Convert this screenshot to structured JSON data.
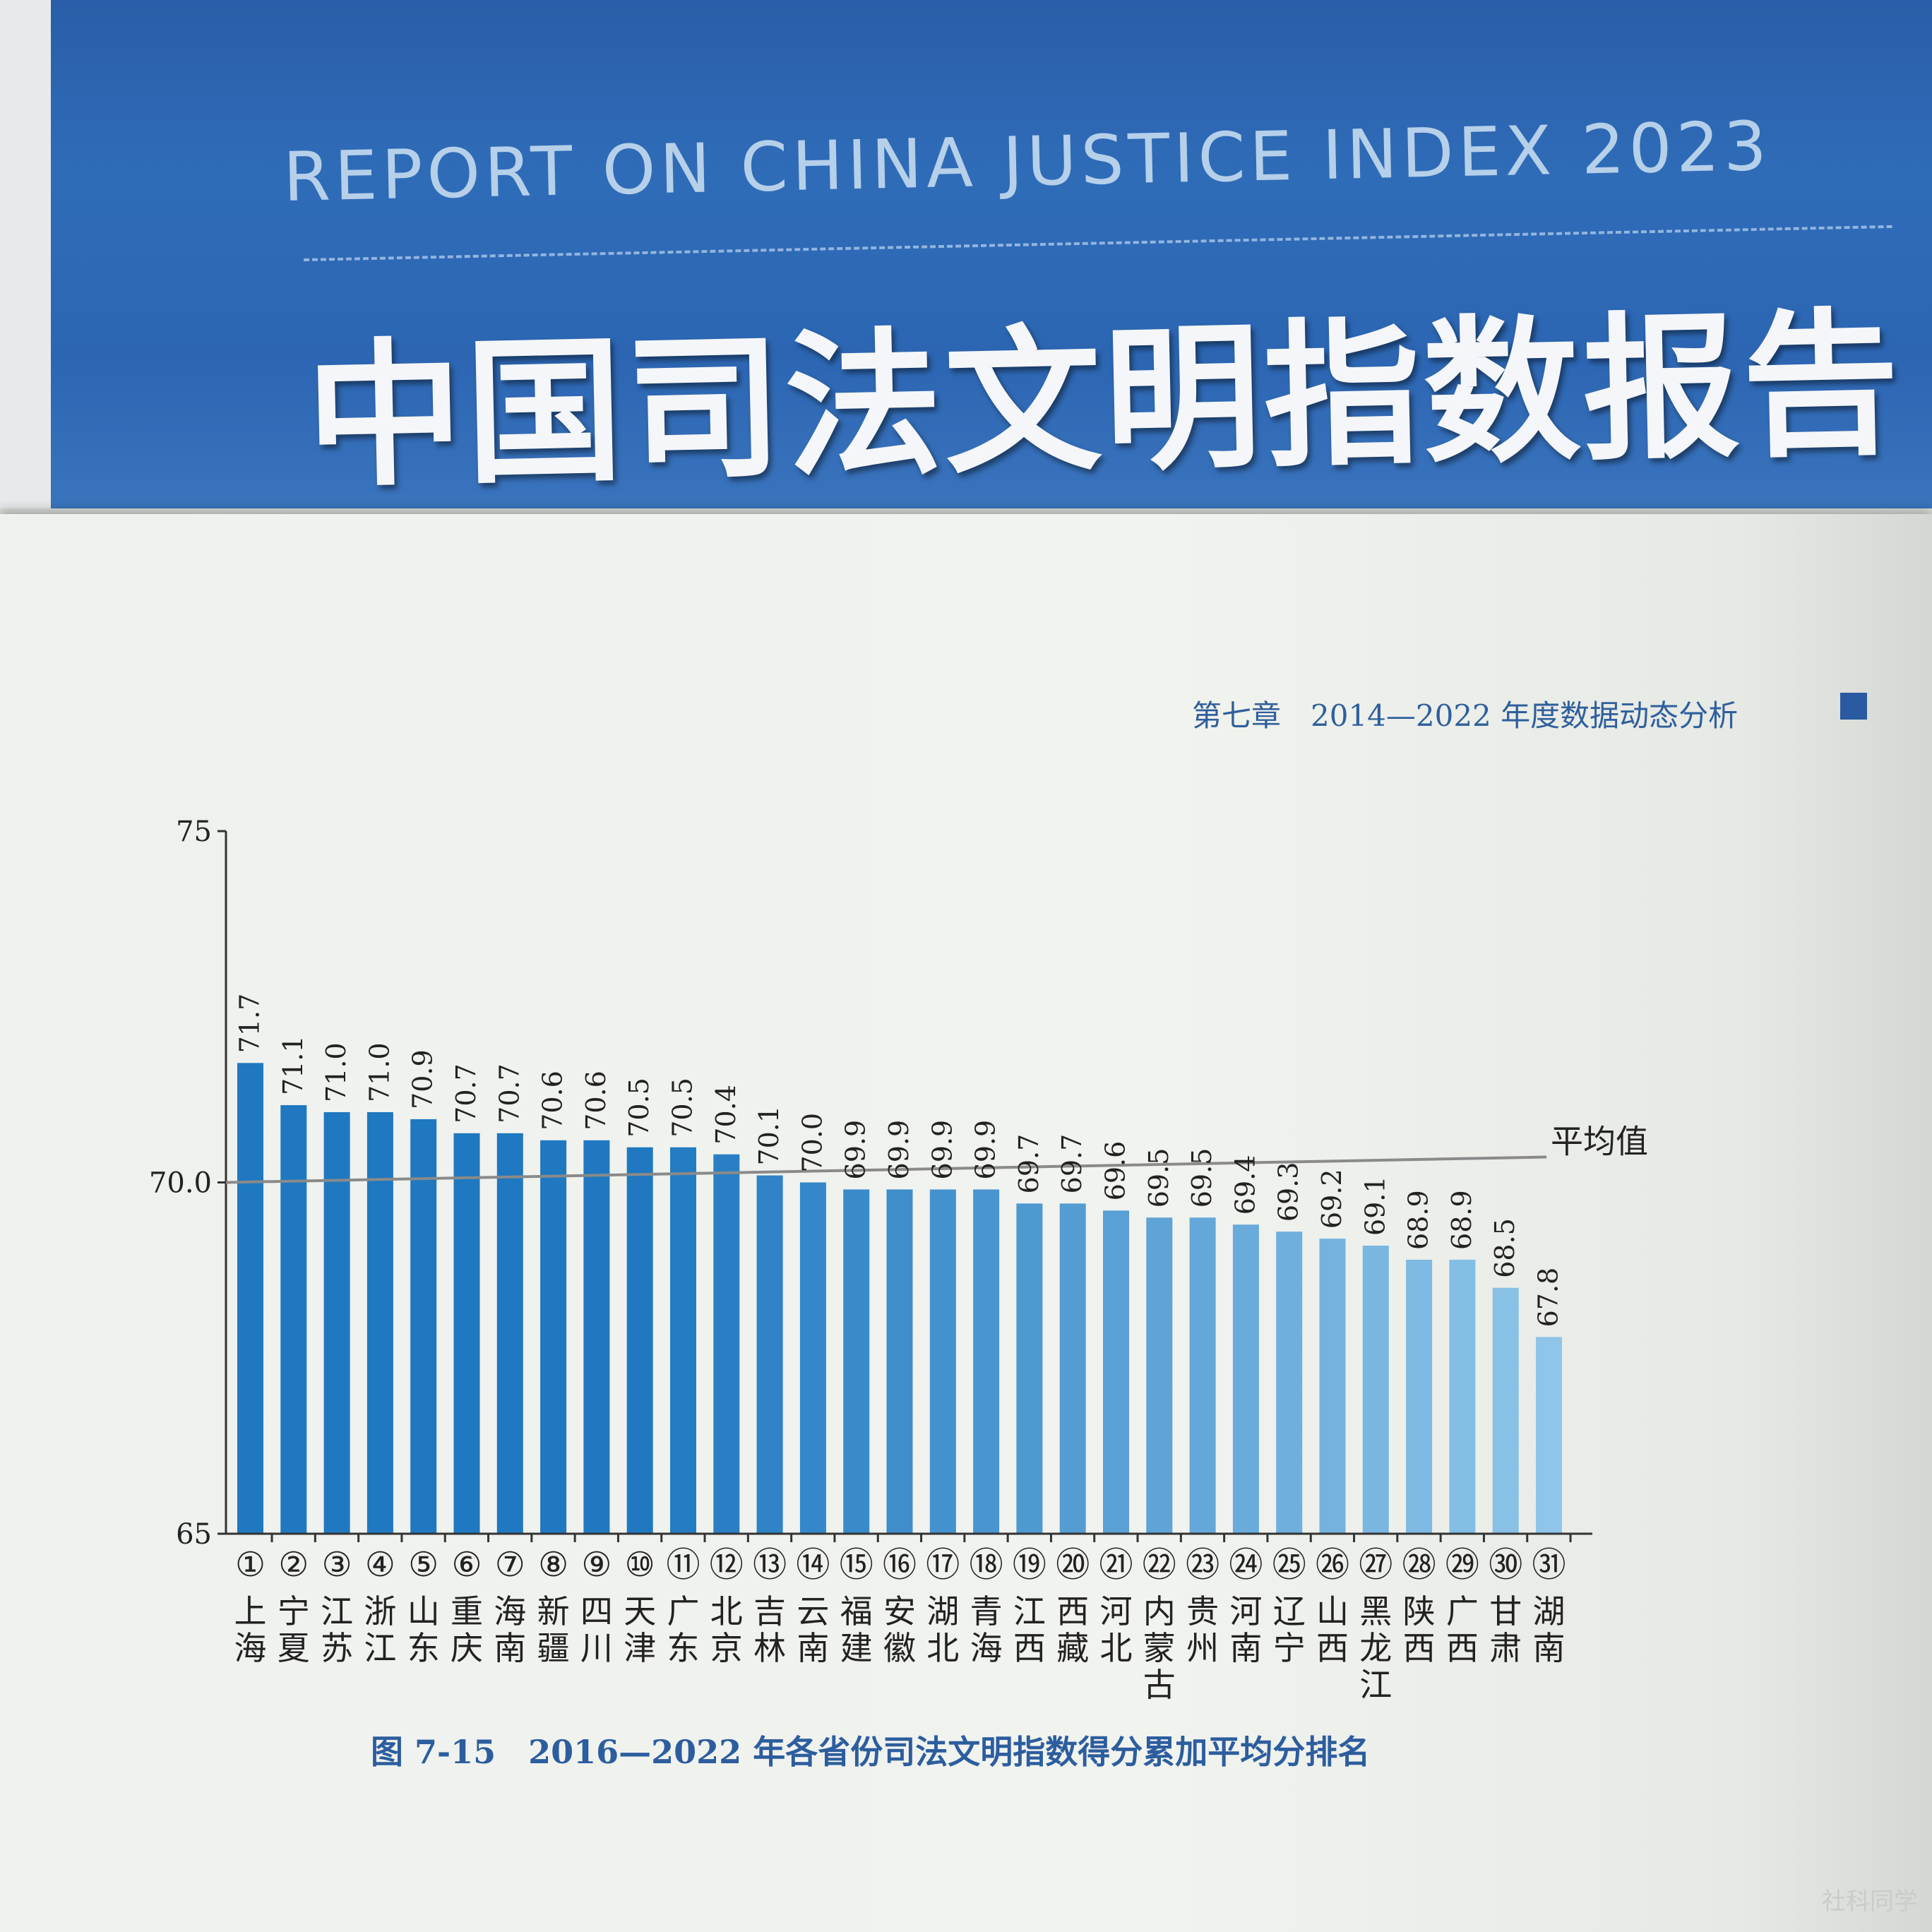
{
  "cover": {
    "title_en": "REPORT ON CHINA JUSTICE INDEX 2023",
    "title_cn": "中国司法文明指数报告"
  },
  "running_head": "第七章　2014—2022 年度数据动态分析",
  "caption": "图 7-15　2016—2022 年各省份司法文明指数得分累加平均分排名",
  "watermark": "社科同学",
  "colors": {
    "bar_dark": "#1f78c0",
    "bar_light": "#8ec5e8",
    "average_line": "#8a8a8a"
  },
  "chart_data": {
    "type": "bar",
    "title": "",
    "xlabel": "",
    "ylabel": "",
    "ylim": [
      65,
      75
    ],
    "ytick_labels": [
      "65",
      "70.0",
      "75"
    ],
    "ytick_values": [
      65,
      70,
      75
    ],
    "rank_labels": [
      "①",
      "②",
      "③",
      "④",
      "⑤",
      "⑥",
      "⑦",
      "⑧",
      "⑨",
      "⑩",
      "⑪",
      "⑫",
      "⑬",
      "⑭",
      "⑮",
      "⑯",
      "⑰",
      "⑱",
      "⑲",
      "⑳",
      "㉑",
      "㉒",
      "㉓",
      "㉔",
      "㉕",
      "㉖",
      "㉗",
      "㉘",
      "㉙",
      "㉚",
      "㉛"
    ],
    "categories": [
      "上海",
      "宁夏",
      "江苏",
      "浙江",
      "山东",
      "重庆",
      "海南",
      "新疆",
      "四川",
      "天津",
      "广东",
      "北京",
      "吉林",
      "云南",
      "福建",
      "安徽",
      "湖北",
      "青海",
      "江西",
      "西藏",
      "河北",
      "内蒙古",
      "贵州",
      "河南",
      "辽宁",
      "山西",
      "黑龙江",
      "陕西",
      "广西",
      "甘肃",
      "湖南"
    ],
    "values": [
      71.7,
      71.1,
      71.0,
      71.0,
      70.9,
      70.7,
      70.7,
      70.6,
      70.6,
      70.5,
      70.5,
      70.4,
      70.1,
      70.0,
      69.9,
      69.9,
      69.9,
      69.9,
      69.7,
      69.7,
      69.6,
      69.5,
      69.5,
      69.4,
      69.3,
      69.2,
      69.1,
      68.9,
      68.9,
      68.5,
      67.8
    ],
    "value_labels": [
      "71.7",
      "71.1",
      "71.0",
      "71.0",
      "70.9",
      "70.7",
      "70.7",
      "70.6",
      "70.6",
      "70.5",
      "70.5",
      "70.4",
      "70.1",
      "70.0",
      "69.9",
      "69.9",
      "69.9",
      "69.9",
      "69.7",
      "69.7",
      "69.6",
      "69.5",
      "69.5",
      "69.4",
      "69.3",
      "69.2",
      "69.1",
      "68.9",
      "68.9",
      "68.5",
      "67.8"
    ],
    "average": {
      "label": "平均值",
      "value": 70.0
    },
    "grid": false,
    "color_gradient": "dark blue to light blue by rank"
  }
}
